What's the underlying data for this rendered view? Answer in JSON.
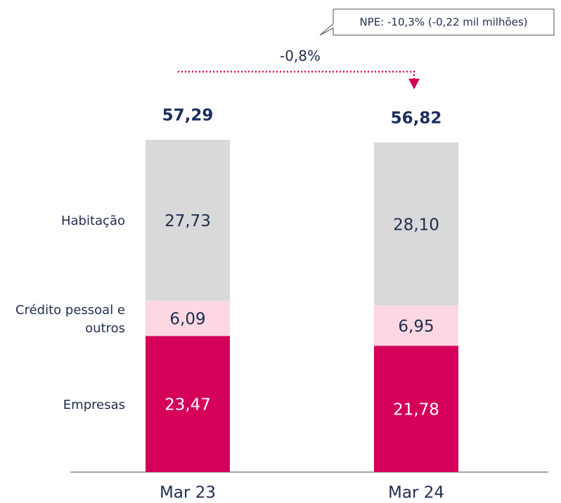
{
  "chart_data": {
    "type": "stacked-bar",
    "categories": [
      "Mar 23",
      "Mar 24"
    ],
    "series": [
      {
        "name": "Empresas",
        "color": "#d4005a",
        "values": [
          23.47,
          21.78
        ],
        "value_labels": [
          "23,47",
          "21,78"
        ]
      },
      {
        "name": "Crédito pessoal e outros",
        "color": "#fdd8e2",
        "values": [
          6.09,
          6.95
        ],
        "value_labels": [
          "6,09",
          "6,95"
        ]
      },
      {
        "name": "Habitação",
        "color": "#d9d9d9",
        "values": [
          27.73,
          28.1
        ],
        "value_labels": [
          "27,73",
          "28,10"
        ]
      }
    ],
    "totals": [
      57.29,
      56.82
    ],
    "total_labels": [
      "57,29",
      "56,82"
    ],
    "annotations": {
      "change": "-0,8%",
      "callout": "NPE: -10,3% (-0,22 mil milhões)"
    }
  }
}
